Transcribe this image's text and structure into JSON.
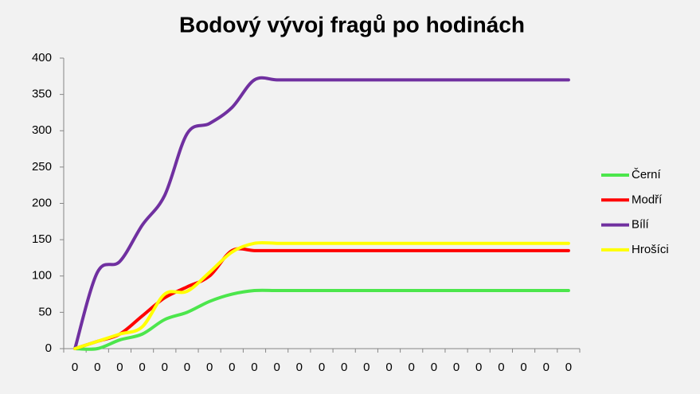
{
  "chart_data": {
    "type": "line",
    "title": "Bodový vývoj fragů po hodinách",
    "categories": [
      "0",
      "0",
      "0",
      "0",
      "0",
      "0",
      "0",
      "0",
      "0",
      "0",
      "0",
      "0",
      "0",
      "0",
      "0",
      "0",
      "0",
      "0",
      "0",
      "0",
      "0",
      "0",
      "0"
    ],
    "series": [
      {
        "name": "Černí",
        "color": "#4ce64c",
        "values": [
          0,
          0,
          12,
          20,
          40,
          50,
          65,
          75,
          80,
          80,
          80,
          80,
          80,
          80,
          80,
          80,
          80,
          80,
          80,
          80,
          80,
          80,
          80
        ]
      },
      {
        "name": "Modří",
        "color": "#ff0000",
        "values": [
          0,
          10,
          20,
          45,
          70,
          85,
          100,
          135,
          135,
          135,
          135,
          135,
          135,
          135,
          135,
          135,
          135,
          135,
          135,
          135,
          135,
          135,
          135
        ]
      },
      {
        "name": "Bílí",
        "color": "#7030a0",
        "values": [
          0,
          105,
          120,
          170,
          211,
          296,
          310,
          332,
          370,
          370,
          370,
          370,
          370,
          370,
          370,
          370,
          370,
          370,
          370,
          370,
          370,
          370,
          370
        ]
      },
      {
        "name": "Hrošíci",
        "color": "#ffff00",
        "values": [
          0,
          10,
          20,
          30,
          75,
          79,
          105,
          133,
          145,
          145,
          145,
          145,
          145,
          145,
          145,
          145,
          145,
          145,
          145,
          145,
          145,
          145,
          145
        ]
      }
    ],
    "ylim": [
      0,
      400
    ],
    "yticks": [
      0,
      50,
      100,
      150,
      200,
      250,
      300,
      350,
      400
    ],
    "grid": false,
    "legend": "right"
  }
}
